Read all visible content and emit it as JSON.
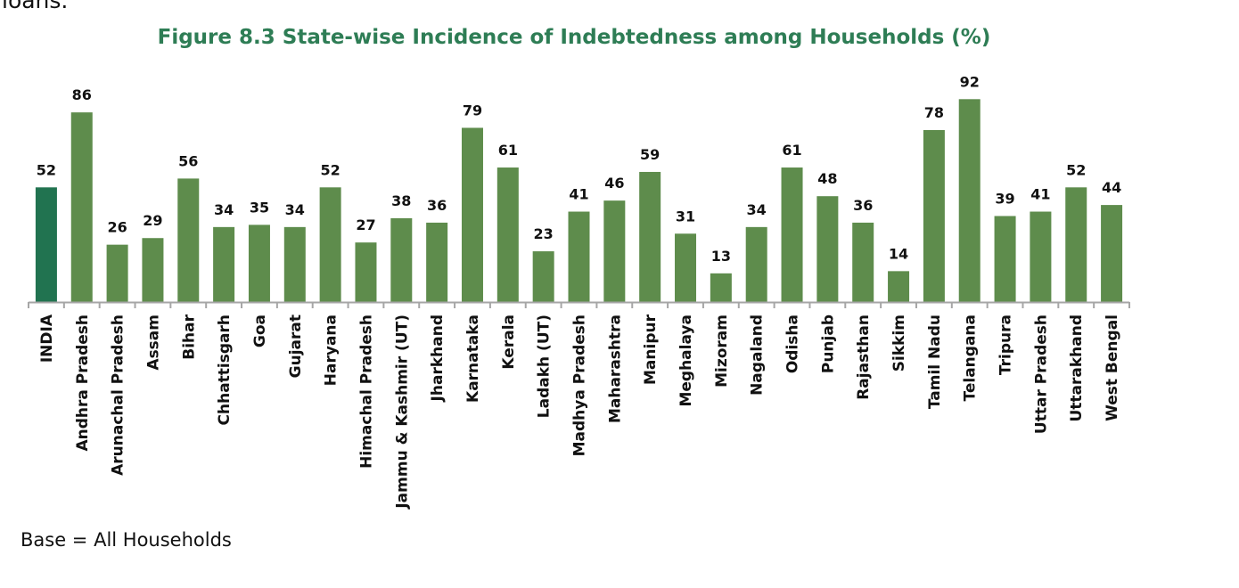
{
  "page": {
    "top_fragment": "loans.",
    "title": "Figure 8.3 State-wise Incidence of Indebtedness among Households (%)",
    "base_note": "Base = All Households"
  },
  "chart_data": {
    "type": "bar",
    "title": "Figure 8.3 State-wise Incidence of Indebtedness among Households (%)",
    "xlabel": "",
    "ylabel": "",
    "ylim": [
      0,
      100
    ],
    "grid": false,
    "legend": "none",
    "categories": [
      "INDIA",
      "Andhra Pradesh",
      "Arunachal Pradesh",
      "Assam",
      "Bihar",
      "Chhattisgarh",
      "Goa",
      "Gujarat",
      "Haryana",
      "Himachal Pradesh",
      "Jammu & Kashmir (UT)",
      "Jharkhand",
      "Karnataka",
      "Kerala",
      "Ladakh (UT)",
      "Madhya Pradesh",
      "Maharashtra",
      "Manipur",
      "Meghalaya",
      "Mizoram",
      "Nagaland",
      "Odisha",
      "Punjab",
      "Rajasthan",
      "Sikkim",
      "Tamil Nadu",
      "Telangana",
      "Tripura",
      "Uttar Pradesh",
      "Uttarakhand",
      "West Bengal"
    ],
    "values": [
      52,
      86,
      26,
      29,
      56,
      34,
      35,
      34,
      52,
      27,
      38,
      36,
      79,
      61,
      23,
      41,
      46,
      59,
      31,
      13,
      34,
      61,
      48,
      36,
      14,
      78,
      92,
      39,
      41,
      52,
      44
    ],
    "colors": {
      "highlight": "#217350",
      "bar": "#5e8c4c",
      "axis": "#a6a6a6",
      "label": "#111111"
    }
  }
}
